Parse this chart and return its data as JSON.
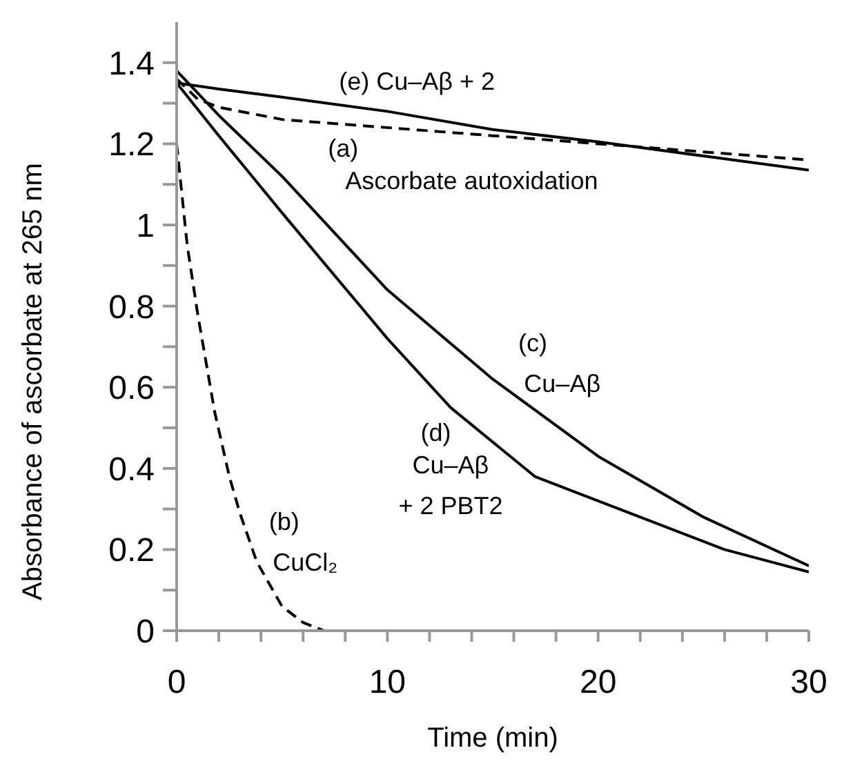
{
  "chart_data": {
    "type": "line",
    "xlabel": "Time (min)",
    "ylabel": "Absorbance of ascorbate at 265 nm",
    "xlim": [
      0,
      30
    ],
    "ylim": [
      0,
      1.5
    ],
    "xticks": [
      0,
      {
        "value": 2,
        "label": null
      },
      {
        "value": 4,
        "label": null
      },
      {
        "value": 6,
        "label": null
      },
      {
        "value": 8,
        "label": null
      },
      10,
      {
        "value": 12,
        "label": null
      },
      {
        "value": 14,
        "label": null
      },
      {
        "value": 16,
        "label": null
      },
      {
        "value": 18,
        "label": null
      },
      20,
      {
        "value": 22,
        "label": null
      },
      {
        "value": 24,
        "label": null
      },
      {
        "value": 26,
        "label": null
      },
      {
        "value": 28,
        "label": null
      },
      30
    ],
    "yticks": [
      0,
      {
        "value": 0.1,
        "label": null
      },
      0.2,
      {
        "value": 0.3,
        "label": null
      },
      0.4,
      {
        "value": 0.5,
        "label": null
      },
      0.6,
      {
        "value": 0.7,
        "label": null
      },
      0.8,
      {
        "value": 0.9,
        "label": null
      },
      1,
      {
        "value": 1.1,
        "label": null
      },
      1.2,
      {
        "value": 1.3,
        "label": null
      },
      1.4
    ],
    "grid": false,
    "legend": false,
    "marker": "none",
    "series": [
      {
        "color": "#000000",
        "line_style": "dashed",
        "x": [
          0,
          1,
          2,
          5,
          10,
          15,
          20,
          25,
          30
        ],
        "values": [
          1.36,
          1.31,
          1.29,
          1.26,
          1.24,
          1.22,
          1.2,
          1.18,
          1.16
        ]
      },
      {
        "color": "#000000",
        "line_style": "dashed",
        "x": [
          0,
          0.5,
          1,
          1.8,
          2.5,
          3,
          3.8,
          5,
          6,
          7,
          30
        ],
        "values": [
          1.2,
          0.95,
          0.78,
          0.54,
          0.38,
          0.29,
          0.17,
          0.06,
          0.02,
          0,
          0
        ]
      },
      {
        "color": "#000000",
        "line_style": "solid",
        "x": [
          0,
          2,
          5,
          10,
          15,
          20,
          22,
          25,
          30
        ],
        "values": [
          1.38,
          1.27,
          1.12,
          0.84,
          0.62,
          0.43,
          0.37,
          0.28,
          0.16
        ]
      },
      {
        "color": "#000000",
        "line_style": "solid",
        "x": [
          0,
          2,
          5,
          10,
          13,
          17,
          22,
          26,
          30
        ],
        "values": [
          1.35,
          1.22,
          1.03,
          0.72,
          0.55,
          0.38,
          0.28,
          0.2,
          0.145
        ]
      },
      {
        "color": "#000000",
        "line_style": "solid",
        "x": [
          0,
          2,
          5,
          10,
          15,
          20,
          25,
          30
        ],
        "values": [
          1.35,
          1.335,
          1.315,
          1.28,
          1.235,
          1.205,
          1.17,
          1.135
        ]
      }
    ],
    "annotations": [
      "(e) Cu–Aβ + 2",
      "(a)",
      "Ascorbate autoxidation",
      "(c)",
      "Cu–Aβ",
      "(d)",
      "Cu–Aβ",
      "+ 2 PBT2",
      "(b)",
      "CuCl₂"
    ]
  }
}
